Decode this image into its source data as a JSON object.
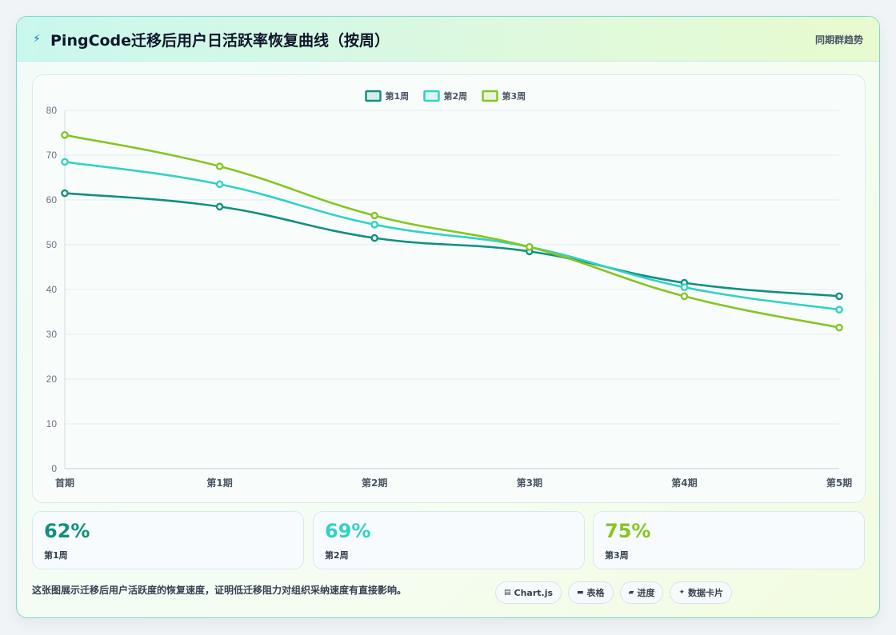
{
  "header": {
    "icon": "bolt-icon",
    "title": "PingCode迁移后用户日活跃率恢复曲线（按周）",
    "tag": "同期群趋势"
  },
  "chart_data": {
    "type": "line",
    "title": "",
    "xlabel": "",
    "ylabel": "",
    "categories": [
      "首期",
      "第1期",
      "第2期",
      "第3期",
      "第4期",
      "第5期"
    ],
    "ylim": [
      0,
      80
    ],
    "yticks": [
      0,
      10,
      20,
      30,
      40,
      50,
      60,
      70,
      80
    ],
    "grid": true,
    "legend_position": "top",
    "series": [
      {
        "name": "第1周",
        "color": "#138f7f",
        "values": [
          61.5,
          58.5,
          51.5,
          48.5,
          41.5,
          38.5
        ]
      },
      {
        "name": "第2周",
        "color": "#33d1c4",
        "values": [
          68.5,
          63.5,
          54.5,
          49.5,
          40.5,
          35.5
        ]
      },
      {
        "name": "第3周",
        "color": "#86c522",
        "values": [
          74.5,
          67.5,
          56.5,
          49.5,
          38.5,
          31.5
        ]
      }
    ]
  },
  "stats": [
    {
      "value": "62%",
      "label": "第1周",
      "color": "#138f7f"
    },
    {
      "value": "69%",
      "label": "第2周",
      "color": "#33d1c4"
    },
    {
      "value": "75%",
      "label": "第3周",
      "color": "#86c522"
    }
  ],
  "footer": {
    "text": "这张图展示迁移后用户活跃度的恢复速度，证明低迁移阻力对组织采纳速度有直接影响。",
    "pills": [
      {
        "icon": "chart-icon",
        "glyph": "▤",
        "label": "Chart.js"
      },
      {
        "icon": "table-icon",
        "glyph": "▬",
        "label": "表格"
      },
      {
        "icon": "progress-icon",
        "glyph": "▰",
        "label": "进度"
      },
      {
        "icon": "sparkle-icon",
        "glyph": "✦",
        "label": "数据卡片"
      }
    ]
  }
}
